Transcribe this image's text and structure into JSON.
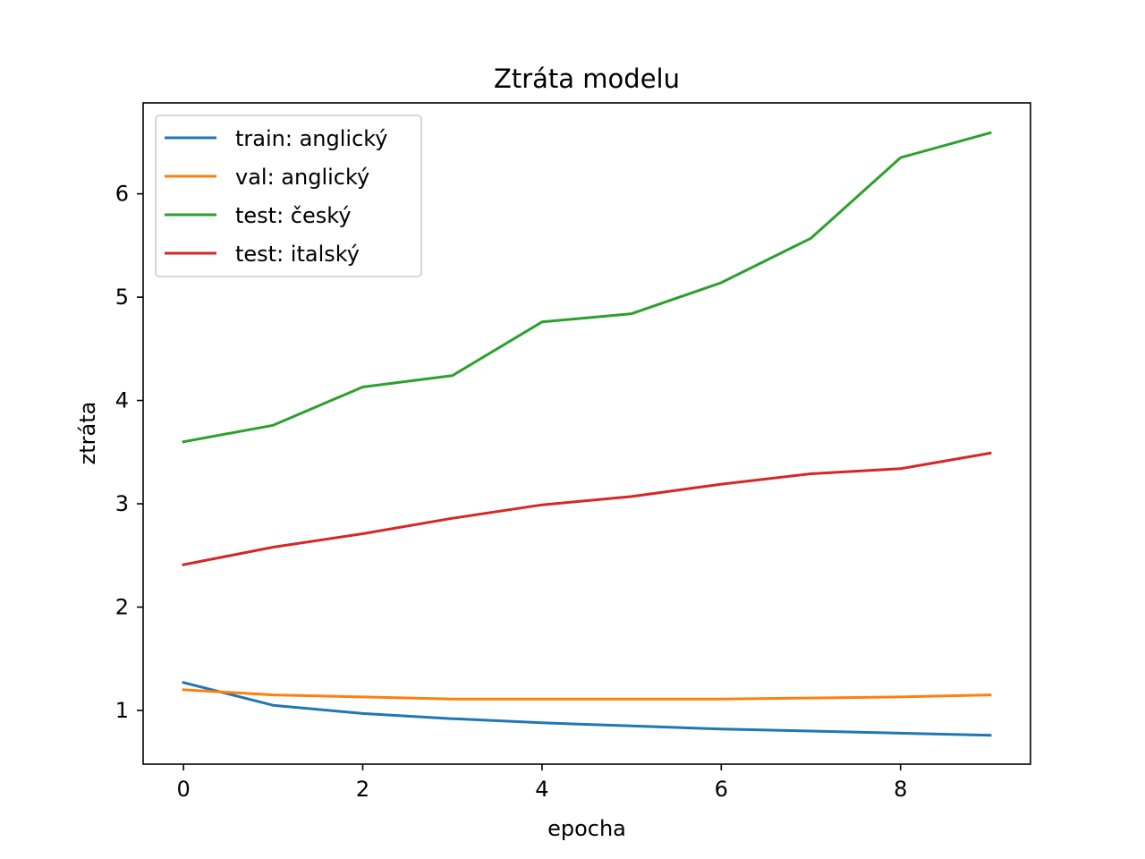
{
  "chart_data": {
    "type": "line",
    "title": "Ztráta modelu",
    "xlabel": "epocha",
    "ylabel": "ztráta",
    "x": [
      0,
      1,
      2,
      3,
      4,
      5,
      6,
      7,
      8,
      9
    ],
    "xlim": [
      -0.45,
      9.45
    ],
    "ylim": [
      0.48,
      6.88
    ],
    "xticks": [
      "0",
      "2",
      "4",
      "6",
      "8"
    ],
    "yticks": [
      "1",
      "2",
      "3",
      "4",
      "5",
      "6"
    ],
    "grid": false,
    "legend_position": "upper-left",
    "series": [
      {
        "name": "train: anglický",
        "color": "#1f77b4",
        "values": [
          1.27,
          1.05,
          0.97,
          0.92,
          0.88,
          0.85,
          0.82,
          0.8,
          0.78,
          0.76
        ]
      },
      {
        "name": "val: anglický",
        "color": "#ff7f0e",
        "values": [
          1.2,
          1.15,
          1.13,
          1.11,
          1.11,
          1.11,
          1.11,
          1.12,
          1.13,
          1.15
        ]
      },
      {
        "name": "test: český",
        "color": "#2ca02c",
        "values": [
          3.6,
          3.76,
          4.13,
          4.24,
          4.76,
          4.84,
          5.14,
          5.57,
          6.35,
          6.59
        ]
      },
      {
        "name": "test: italský",
        "color": "#d62728",
        "values": [
          2.41,
          2.58,
          2.71,
          2.86,
          2.99,
          3.07,
          3.19,
          3.29,
          3.34,
          3.49
        ]
      }
    ]
  }
}
